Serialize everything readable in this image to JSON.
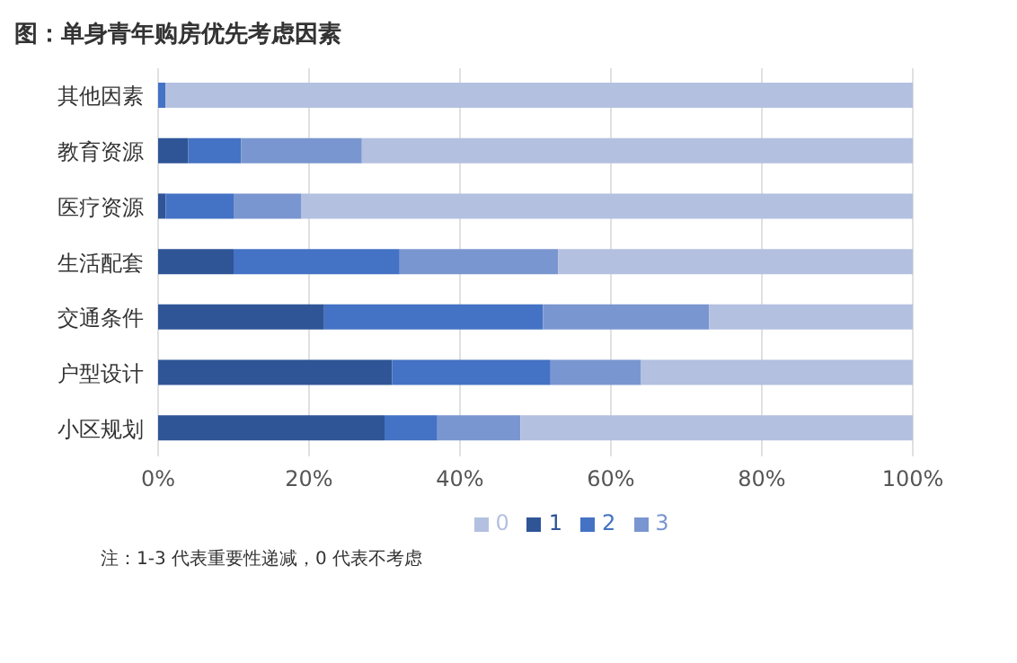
{
  "chart_data": {
    "type": "bar",
    "orientation": "horizontal",
    "stacked": true,
    "title": "图：单身青年购房优先考虑因素",
    "categories": [
      "其他因素",
      "教育资源",
      "医疗资源",
      "生活配套",
      "交通条件",
      "户型设计",
      "小区规划"
    ],
    "series": [
      {
        "name": "1",
        "color": "#2f5597",
        "values": [
          0,
          4,
          1,
          10,
          22,
          31,
          30
        ]
      },
      {
        "name": "2",
        "color": "#4472c4",
        "values": [
          1,
          7,
          9,
          22,
          29,
          21,
          7
        ]
      },
      {
        "name": "3",
        "color": "#7a96d0",
        "values": [
          0,
          16,
          9,
          21,
          22,
          12,
          11
        ]
      },
      {
        "name": "0",
        "color": "#b4c0e0",
        "values": [
          99,
          73,
          81,
          47,
          27,
          36,
          52
        ]
      }
    ],
    "xlim": [
      0,
      100
    ],
    "xticks": [
      {
        "value": 0,
        "label": "0%"
      },
      {
        "value": 20,
        "label": "20%"
      },
      {
        "value": 40,
        "label": "40%"
      },
      {
        "value": 60,
        "label": "60%"
      },
      {
        "value": 80,
        "label": "80%"
      },
      {
        "value": 100,
        "label": "100%"
      }
    ],
    "grid": "x",
    "legend": "bottom",
    "annotations": [
      "注：1-3 代表重要性递减，0 代表不考虑"
    ]
  }
}
